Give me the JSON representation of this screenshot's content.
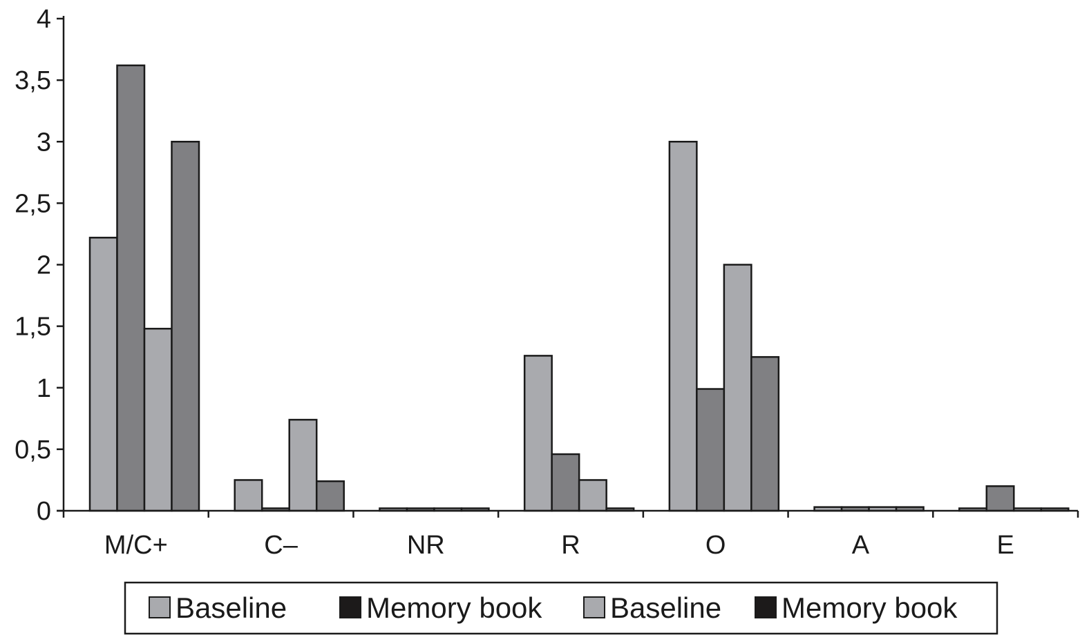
{
  "chart_data": {
    "type": "bar",
    "title": "",
    "xlabel": "",
    "ylabel": "",
    "ylim": [
      0,
      4
    ],
    "yticks": [
      "0",
      "0,5",
      "1",
      "1,5",
      "2",
      "2,5",
      "3",
      "3,5",
      "4"
    ],
    "grid": false,
    "legend_position": "bottom",
    "categories": [
      "M/C+",
      "C–",
      "NR",
      "R",
      "O",
      "A",
      "E"
    ],
    "series": [
      {
        "name": "Baseline",
        "color": "#a9aaae",
        "values": [
          2.22,
          0.25,
          0.02,
          1.26,
          3.0,
          0.03,
          0.02
        ]
      },
      {
        "name": "Memory book",
        "color": "#1c1a1a",
        "values": [
          3.62,
          0.02,
          0.02,
          0.46,
          0.99,
          0.03,
          0.2
        ]
      },
      {
        "name": "Baseline",
        "color": "#a9aaae",
        "values": [
          1.48,
          0.74,
          0.02,
          0.25,
          2.0,
          0.03,
          0.02
        ]
      },
      {
        "name": "Memory book",
        "color": "#1c1a1a",
        "values": [
          3.0,
          0.24,
          0.02,
          0.02,
          1.25,
          0.03,
          0.02
        ]
      }
    ],
    "bar_fill_colors": [
      "#a9aaae",
      "#808083",
      "#a9aaae",
      "#808083"
    ]
  }
}
